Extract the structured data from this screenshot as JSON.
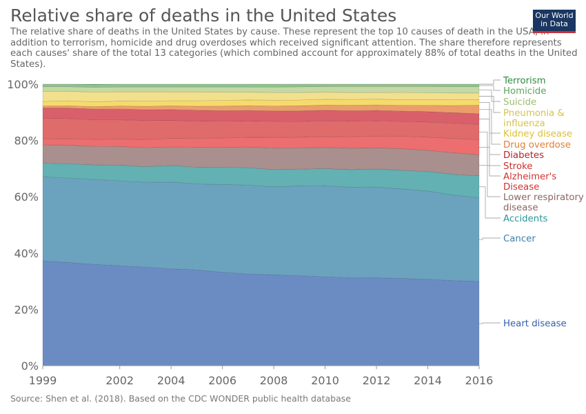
{
  "header": {
    "title": "Relative share of deaths in the United States",
    "subtitle": "The relative share of deaths in the United States by cause. These represent the top 10 causes of death in the USA, in addition to terrorism, homicide and drug overdoses which received significant attention. The share therefore represents each causes' share of the total 13 categories (which combined account for approximately 88% of total deaths in the United States).",
    "logo_line1": "Our World",
    "logo_line2": "in Data"
  },
  "footer": {
    "source": "Source: Shen et al. (2018). Based on the CDC WONDER public health database"
  },
  "chart_data": {
    "type": "area",
    "stacked": true,
    "normalized_percent": true,
    "title": "Relative share of deaths in the United States",
    "x": [
      1999,
      2000,
      2001,
      2002,
      2003,
      2004,
      2005,
      2006,
      2007,
      2008,
      2009,
      2010,
      2011,
      2012,
      2013,
      2014,
      2015,
      2016
    ],
    "x_tick_labels": [
      "1999",
      "2002",
      "2004",
      "2006",
      "2008",
      "2010",
      "2012",
      "2014",
      "2016"
    ],
    "y_tick_labels": [
      "0%",
      "20%",
      "40%",
      "60%",
      "80%",
      "100%"
    ],
    "ylim": [
      0,
      100
    ],
    "xlim": [
      1999,
      2016
    ],
    "legend_placement": "right (direct labels)",
    "grid": false,
    "series": [
      {
        "name": "Heart disease",
        "color": "#6b8cc3",
        "label_color": "#3360a9",
        "values": [
          37.0,
          36.4,
          35.8,
          35.3,
          34.8,
          34.0,
          33.5,
          32.8,
          32.1,
          31.6,
          31.2,
          30.8,
          30.4,
          30.5,
          30.5,
          30.2,
          29.9,
          29.6
        ]
      },
      {
        "name": "Cancer",
        "color": "#6ba3bf",
        "label_color": "#3c7ea8",
        "values": [
          29.7,
          29.8,
          30.0,
          30.0,
          29.9,
          30.4,
          30.1,
          30.8,
          31.1,
          30.6,
          31.2,
          31.5,
          31.4,
          31.5,
          31.2,
          30.8,
          30.0,
          29.4
        ]
      },
      {
        "name": "Accidents",
        "color": "#63b1b2",
        "label_color": "#2c9598",
        "values": [
          4.8,
          5.0,
          5.2,
          5.5,
          5.5,
          5.8,
          5.8,
          6.0,
          6.1,
          6.0,
          5.8,
          5.9,
          6.1,
          6.3,
          6.5,
          6.8,
          7.3,
          7.7
        ]
      },
      {
        "name": "Lower respiratory disease",
        "color": "#a98f8e",
        "label_color": "#8a6663",
        "values": [
          6.5,
          6.6,
          6.5,
          6.6,
          6.7,
          6.5,
          7.0,
          7.0,
          7.2,
          7.5,
          7.4,
          7.3,
          7.4,
          7.3,
          7.6,
          7.4,
          7.6,
          7.4
        ]
      },
      {
        "name": "Alzheimer's Disease",
        "color": "#ec6e6e",
        "label_color": "#d0312f",
        "values": [
          2.1,
          2.3,
          2.5,
          2.6,
          2.9,
          3.0,
          3.2,
          3.3,
          3.4,
          3.7,
          3.7,
          3.8,
          4.0,
          4.1,
          4.3,
          4.6,
          5.1,
          5.3
        ]
      },
      {
        "name": "Stroke",
        "color": "#e06b6b",
        "label_color": "#c9302c",
        "values": [
          7.3,
          7.1,
          6.9,
          6.8,
          6.7,
          6.3,
          6.0,
          5.9,
          5.7,
          5.6,
          5.5,
          5.5,
          5.4,
          5.3,
          5.2,
          5.3,
          5.3,
          5.4
        ]
      },
      {
        "name": "Diabetes",
        "color": "#d9606a",
        "label_color": "#b5232b",
        "values": [
          3.6,
          3.7,
          3.8,
          3.8,
          3.8,
          3.8,
          3.8,
          3.7,
          3.7,
          3.6,
          3.6,
          3.6,
          3.6,
          3.6,
          3.6,
          3.6,
          3.7,
          3.7
        ]
      },
      {
        "name": "Drug overdose",
        "color": "#eb9e6a",
        "label_color": "#e07f31",
        "values": [
          0.7,
          0.8,
          0.9,
          1.1,
          1.2,
          1.3,
          1.4,
          1.6,
          1.7,
          1.7,
          1.8,
          1.8,
          1.9,
          1.9,
          2.0,
          2.2,
          2.5,
          3.0
        ]
      },
      {
        "name": "Kidney disease",
        "color": "#f6db6c",
        "label_color": "#dbc036",
        "values": [
          1.6,
          1.7,
          1.7,
          1.7,
          1.8,
          1.8,
          1.9,
          2.0,
          2.0,
          2.0,
          2.0,
          2.0,
          2.0,
          2.0,
          2.0,
          2.0,
          2.0,
          2.0
        ]
      },
      {
        "name": "Pneumonia & influenza",
        "color": "#f2e08d",
        "label_color": "#d7c24a",
        "values": [
          3.6,
          3.4,
          3.4,
          3.3,
          3.3,
          3.1,
          3.1,
          2.9,
          2.7,
          2.7,
          2.6,
          2.4,
          2.4,
          2.3,
          2.5,
          2.4,
          2.4,
          2.3
        ]
      },
      {
        "name": "Suicide",
        "color": "#c4d9a4",
        "label_color": "#9bbd6e",
        "values": [
          1.6,
          1.6,
          1.7,
          1.7,
          1.7,
          1.7,
          1.7,
          1.8,
          1.8,
          1.9,
          2.0,
          2.0,
          2.1,
          2.1,
          2.1,
          2.2,
          2.2,
          2.2
        ]
      },
      {
        "name": "Homicide",
        "color": "#8fc48e",
        "label_color": "#5aa65a",
        "values": [
          0.9,
          0.9,
          1.0,
          1.0,
          1.0,
          1.0,
          1.0,
          1.0,
          1.0,
          1.0,
          0.9,
          0.8,
          0.8,
          0.8,
          0.8,
          0.8,
          0.9,
          0.9
        ]
      },
      {
        "name": "Terrorism",
        "color": "#3c9a4a",
        "label_color": "#2d8a3e",
        "values": [
          0.0,
          0.0,
          0.1,
          0.0,
          0.0,
          0.0,
          0.0,
          0.0,
          0.0,
          0.0,
          0.0,
          0.0,
          0.0,
          0.0,
          0.0,
          0.0,
          0.0,
          0.0
        ]
      }
    ]
  }
}
